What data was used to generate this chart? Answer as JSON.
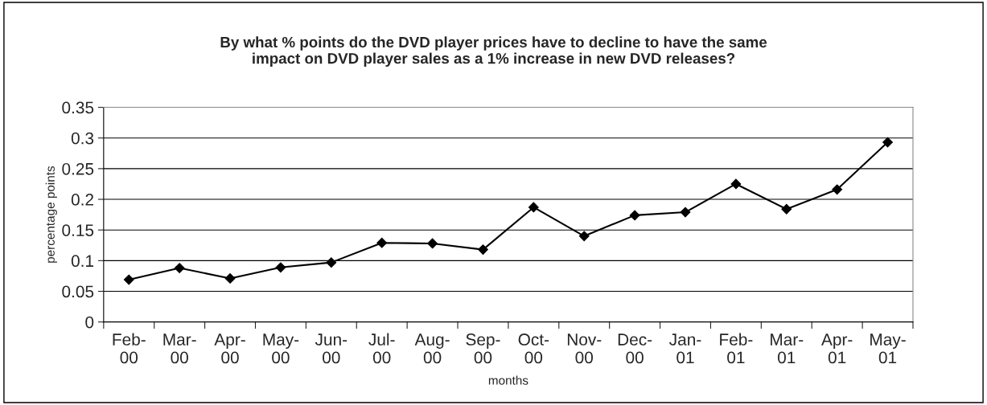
{
  "chart_data": {
    "type": "line",
    "title": "By what % points do the DVD player prices have to decline to have the same\nimpact on DVD player sales as a 1% increase in new DVD releases?",
    "xlabel": "months",
    "ylabel": "percentage points",
    "categories": [
      "Feb-\n00",
      "Mar-\n00",
      "Apr-\n00",
      "May-\n00",
      "Jun-\n00",
      "Jul-\n00",
      "Aug-\n00",
      "Sep-\n00",
      "Oct-\n00",
      "Nov-\n00",
      "Dec-\n00",
      "Jan-\n01",
      "Feb-\n01",
      "Mar-\n01",
      "Apr-\n01",
      "May-\n01"
    ],
    "series": [
      {
        "color": "#000000",
        "values": [
          0.069,
          0.088,
          0.071,
          0.089,
          0.097,
          0.129,
          0.128,
          0.118,
          0.187,
          0.14,
          0.174,
          0.179,
          0.225,
          0.184,
          0.216,
          0.293
        ]
      }
    ],
    "ylim": [
      0,
      0.35
    ],
    "yticks": [
      0,
      0.05,
      0.1,
      0.15,
      0.2,
      0.25,
      0.3,
      0.35
    ],
    "grid": "y",
    "marker": "diamond",
    "line_style": "solid",
    "legend": false
  }
}
